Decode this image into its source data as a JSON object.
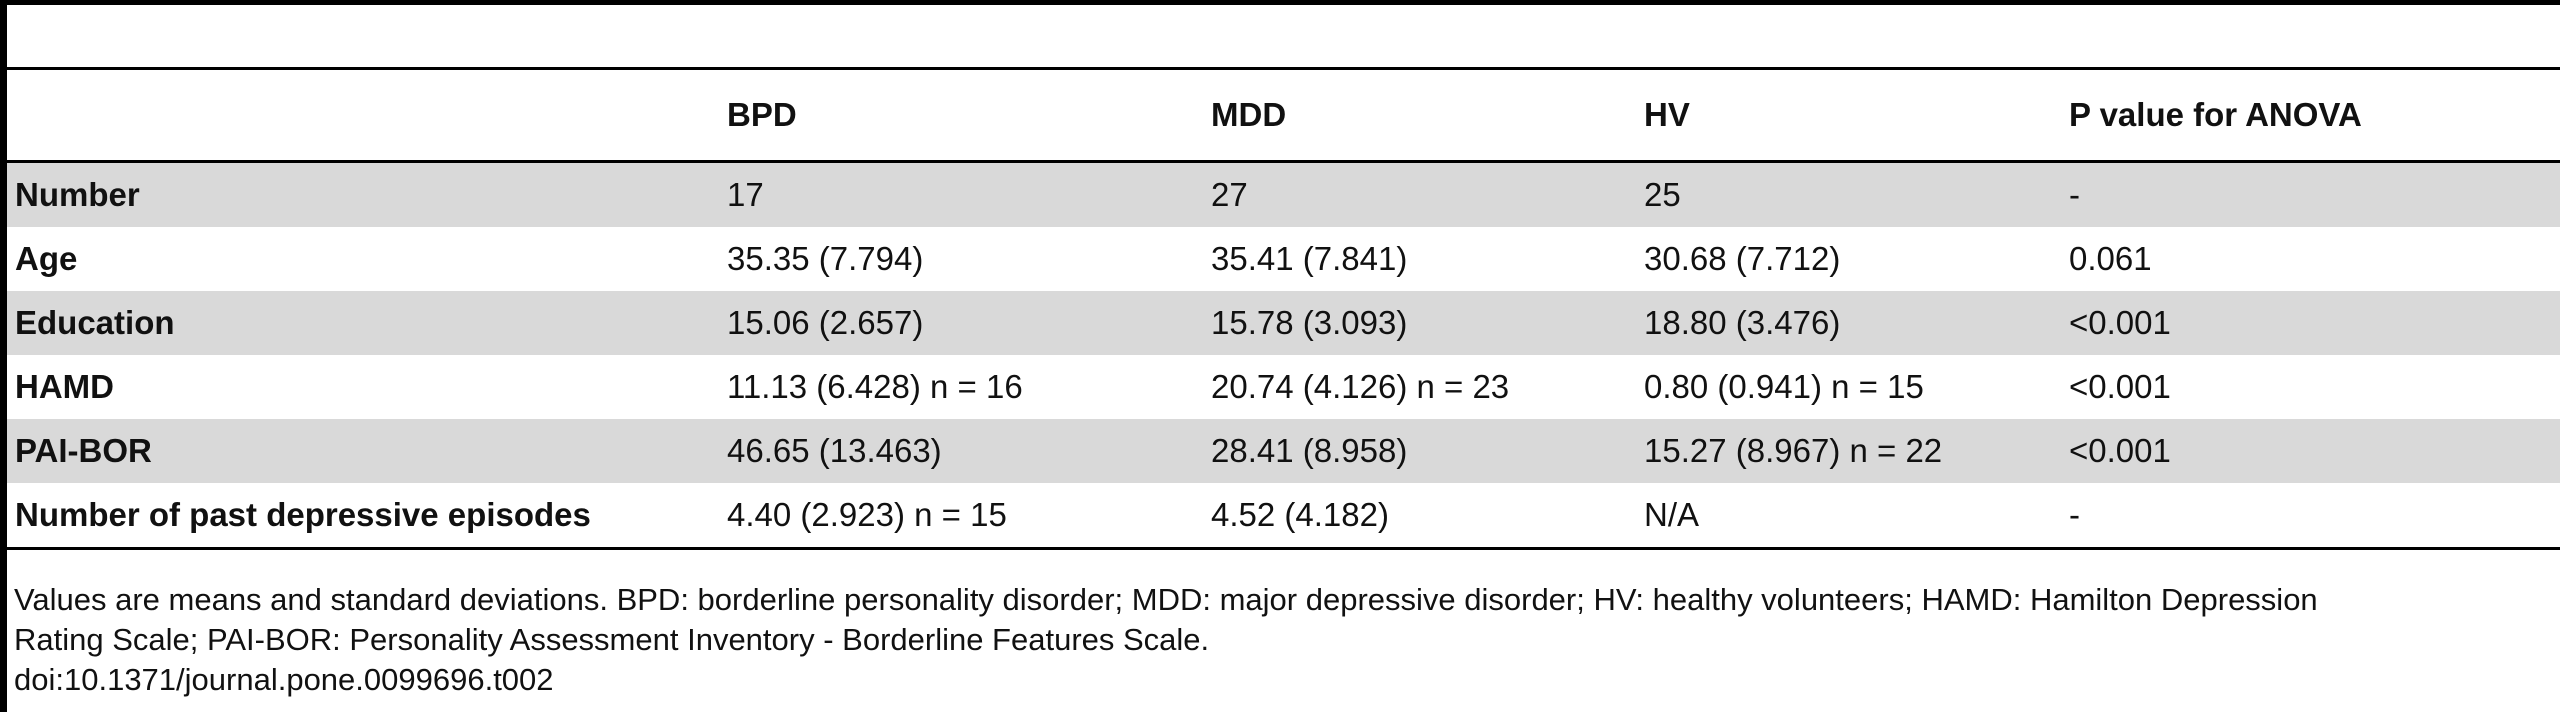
{
  "table": {
    "headers": [
      "",
      "BPD",
      "MDD",
      "HV",
      "P value for ANOVA"
    ],
    "rows": [
      {
        "label": "Number",
        "cells": [
          "17",
          "27",
          "25",
          "-"
        ],
        "shaded": true
      },
      {
        "label": "Age",
        "cells": [
          "35.35 (7.794)",
          "35.41 (7.841)",
          "30.68 (7.712)",
          "0.061"
        ],
        "shaded": false
      },
      {
        "label": "Education",
        "cells": [
          "15.06 (2.657)",
          "15.78 (3.093)",
          "18.80 (3.476)",
          "<0.001"
        ],
        "shaded": true
      },
      {
        "label": "HAMD",
        "cells": [
          "11.13 (6.428) n = 16",
          "20.74 (4.126) n = 23",
          "0.80 (0.941) n = 15",
          "<0.001"
        ],
        "shaded": false
      },
      {
        "label": "PAI-BOR",
        "cells": [
          "46.65 (13.463)",
          "28.41 (8.958)",
          "15.27 (8.967) n = 22",
          "<0.001"
        ],
        "shaded": true
      },
      {
        "label": "Number of past depressive episodes",
        "cells": [
          "4.40 (2.923) n = 15",
          "4.52 (4.182)",
          "N/A",
          "-"
        ],
        "shaded": false
      }
    ]
  },
  "footnote": {
    "line1": "Values are means and standard deviations. BPD: borderline personality disorder; MDD: major depressive disorder; HV: healthy volunteers; HAMD: Hamilton Depression",
    "line2": "Rating Scale; PAI-BOR: Personality Assessment Inventory - Borderline Features Scale.",
    "doi": "doi:10.1371/journal.pone.0099696.t002"
  }
}
